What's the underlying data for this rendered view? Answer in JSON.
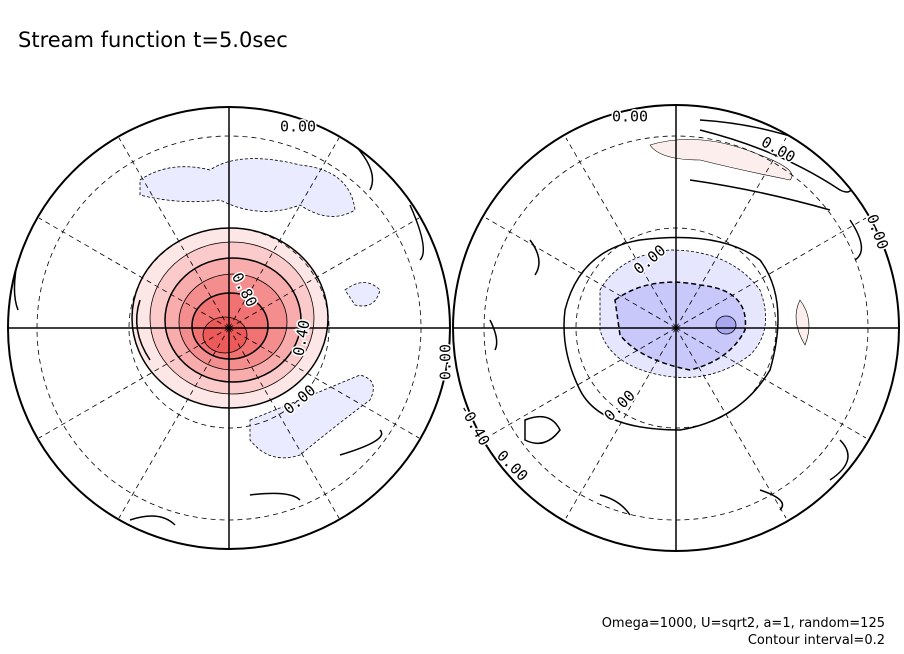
{
  "chart_data": {
    "type": "contour",
    "title": "Stream function t=5.0sec",
    "annotations": [
      "0.00",
      "0.80",
      "0.40",
      "0.00",
      "0.00",
      "0.00",
      "0.00",
      "0.00",
      "-0.40",
      "0.00",
      "0.00",
      "0.00"
    ],
    "notes": [
      "Omega=1000, U=sqrt2, a=1, random=125",
      "Contour interval=0.2"
    ]
  }
}
